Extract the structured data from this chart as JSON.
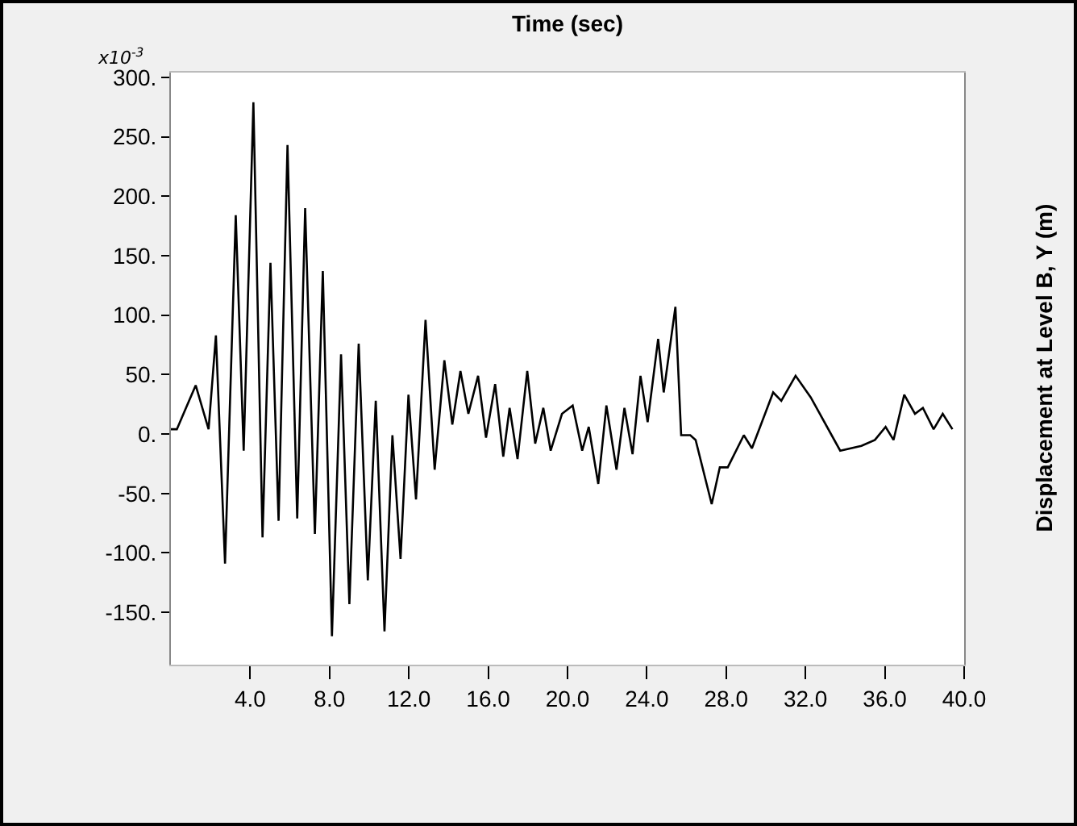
{
  "chart_data": {
    "type": "line",
    "title": "Time (sec)",
    "ylabel": "Displacement at Level B, Y (m)",
    "annotations": [
      "x10$^{-3}$"
    ],
    "x": [
      0,
      0.3,
      1.25,
      1.9,
      2.27,
      2.73,
      3.27,
      3.67,
      4.16,
      4.62,
      5.02,
      5.43,
      5.88,
      6.37,
      6.77,
      7.26,
      7.66,
      8.12,
      8.58,
      9.0,
      9.47,
      9.93,
      10.33,
      10.77,
      11.17,
      11.58,
      11.98,
      12.36,
      12.84,
      13.3,
      13.79,
      14.19,
      14.6,
      15.0,
      15.49,
      15.89,
      16.35,
      16.76,
      17.08,
      17.48,
      17.97,
      18.37,
      18.78,
      19.15,
      19.72,
      20.26,
      20.74,
      21.07,
      21.55,
      21.96,
      22.47,
      22.87,
      23.28,
      23.68,
      24.04,
      24.57,
      24.85,
      25.44,
      25.73,
      26.19,
      26.46,
      27.27,
      27.68,
      28.08,
      28.89,
      29.3,
      30.37,
      30.78,
      31.5,
      32.26,
      33.75,
      34.82,
      35.5,
      36.04,
      36.44,
      36.98,
      37.52,
      37.92,
      38.46,
      38.92,
      39.41
    ],
    "series": [
      {
        "color": "#000000",
        "values": [
          4,
          4,
          41,
          4,
          83,
          -109,
          184,
          -14,
          279,
          -87,
          144,
          -73,
          243,
          -71,
          190,
          -84,
          137,
          -170,
          67,
          -143,
          76,
          -123,
          28,
          -166,
          -1,
          -105,
          33,
          -55,
          96,
          -30,
          62,
          8,
          53,
          17,
          49,
          -3,
          42,
          -19,
          22,
          -21,
          53,
          -8,
          22,
          -14,
          17,
          24,
          -14,
          6,
          -42,
          24,
          -30,
          22,
          -17,
          49,
          10,
          80,
          35,
          107,
          -1,
          -1,
          -5,
          -59,
          -28,
          -28,
          -1,
          -12,
          35,
          28,
          49,
          31,
          -14,
          -10,
          -5,
          6,
          -5,
          33,
          17,
          22,
          4,
          17,
          4
        ]
      }
    ],
    "xlim": [
      0,
      40
    ],
    "xticks": [
      {
        "value": 4,
        "label": "4.0"
      },
      {
        "value": 8,
        "label": "8.0"
      },
      {
        "value": 12,
        "label": "12.0"
      },
      {
        "value": 16,
        "label": "16.0"
      },
      {
        "value": 20,
        "label": "20.0"
      },
      {
        "value": 24,
        "label": "24.0"
      },
      {
        "value": 28,
        "label": "28.0"
      },
      {
        "value": 32,
        "label": "32.0"
      },
      {
        "value": 36,
        "label": "36.0"
      },
      {
        "value": 40,
        "label": "40.0"
      }
    ],
    "ylim": [
      -194,
      304
    ],
    "yticks": [
      {
        "value": -150,
        "label": "-150."
      },
      {
        "value": -100,
        "label": "-100."
      },
      {
        "value": -50,
        "label": "-50."
      },
      {
        "value": 0,
        "label": "0."
      },
      {
        "value": 50,
        "label": "50."
      },
      {
        "value": 100,
        "label": "100."
      },
      {
        "value": 150,
        "label": "150."
      },
      {
        "value": 200,
        "label": "200."
      },
      {
        "value": 250,
        "label": "250."
      },
      {
        "value": 300,
        "label": "300."
      }
    ]
  }
}
